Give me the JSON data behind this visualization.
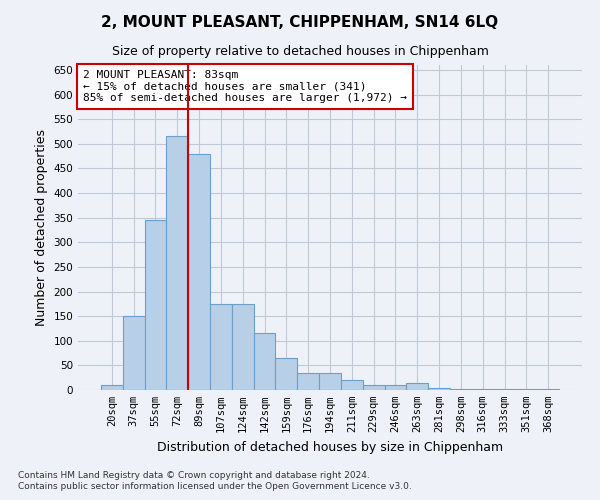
{
  "title": "2, MOUNT PLEASANT, CHIPPENHAM, SN14 6LQ",
  "subtitle": "Size of property relative to detached houses in Chippenham",
  "xlabel": "Distribution of detached houses by size in Chippenham",
  "ylabel": "Number of detached properties",
  "footnote1": "Contains HM Land Registry data © Crown copyright and database right 2024.",
  "footnote2": "Contains public sector information licensed under the Open Government Licence v3.0.",
  "categories": [
    "20sqm",
    "37sqm",
    "55sqm",
    "72sqm",
    "89sqm",
    "107sqm",
    "124sqm",
    "142sqm",
    "159sqm",
    "176sqm",
    "194sqm",
    "211sqm",
    "229sqm",
    "246sqm",
    "263sqm",
    "281sqm",
    "298sqm",
    "316sqm",
    "333sqm",
    "351sqm",
    "368sqm"
  ],
  "values": [
    10,
    150,
    345,
    515,
    480,
    175,
    175,
    115,
    65,
    35,
    35,
    20,
    10,
    10,
    15,
    5,
    2,
    2,
    2,
    2,
    2
  ],
  "bar_color": "#b8cfe8",
  "bar_edge_color": "#6aa0cd",
  "grid_color": "#c0c8d8",
  "background_color": "#eef2f8",
  "annotation_text1": "2 MOUNT PLEASANT: 83sqm",
  "annotation_text2": "← 15% of detached houses are smaller (341)",
  "annotation_text3": "85% of semi-detached houses are larger (1,972) →",
  "annotation_box_color": "#ffffff",
  "annotation_border_color": "#cc0000",
  "property_line_color": "#cc0000",
  "ylim": [
    0,
    660
  ],
  "yticks": [
    0,
    50,
    100,
    150,
    200,
    250,
    300,
    350,
    400,
    450,
    500,
    550,
    600,
    650
  ]
}
